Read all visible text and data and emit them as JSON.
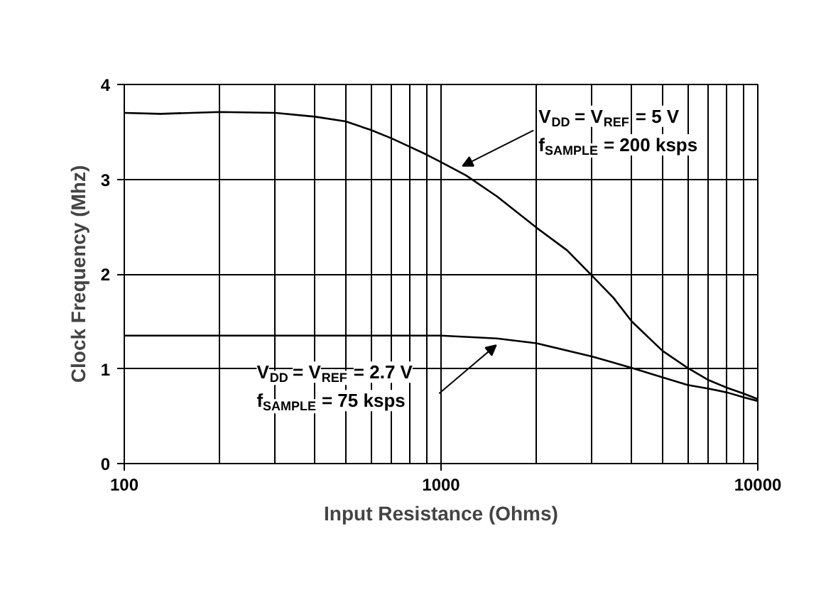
{
  "chart_data": {
    "type": "line",
    "xlabel": "Input Resistance (Ohms)",
    "ylabel": "Clock Frequency (Mhz)",
    "log": "x",
    "xlim": [
      100,
      10000
    ],
    "xticks": [
      100,
      1000,
      10000
    ],
    "ylim": [
      0,
      4
    ],
    "yticks": [
      0,
      1,
      2,
      3,
      4
    ],
    "grid": true,
    "marker": "none",
    "line_style": "solid",
    "series": [
      {
        "color": "#000000",
        "x": [
          100,
          130,
          200,
          300,
          400,
          500,
          600,
          700,
          800,
          900,
          1000,
          1200,
          1500,
          2000,
          2500,
          3000,
          3500,
          4000,
          5000,
          6000,
          7000,
          8000,
          9000,
          10000
        ],
        "values": [
          3.7,
          3.69,
          3.71,
          3.7,
          3.66,
          3.61,
          3.52,
          3.43,
          3.34,
          3.26,
          3.18,
          3.04,
          2.82,
          2.49,
          2.25,
          1.98,
          1.75,
          1.5,
          1.19,
          1.01,
          0.88,
          0.8,
          0.74,
          0.68
        ]
      },
      {
        "color": "#000000",
        "x": [
          100,
          200,
          500,
          1000,
          1500,
          2000,
          3000,
          4000,
          5000,
          6000,
          7000,
          8000,
          9000,
          10000
        ],
        "values": [
          1.35,
          1.35,
          1.35,
          1.35,
          1.32,
          1.27,
          1.13,
          1.01,
          0.91,
          0.83,
          0.79,
          0.75,
          0.7,
          0.66
        ]
      }
    ],
    "annotations": [
      "V$_{DD}$ = V$_{REF}$ = 5 V",
      "f$_{SAMPLE}$ = 200 ksps",
      "V$_{DD}$ = V$_{REF}$ = 2.7 V",
      "f$_{SAMPLE}$ = 75 ksps"
    ]
  }
}
